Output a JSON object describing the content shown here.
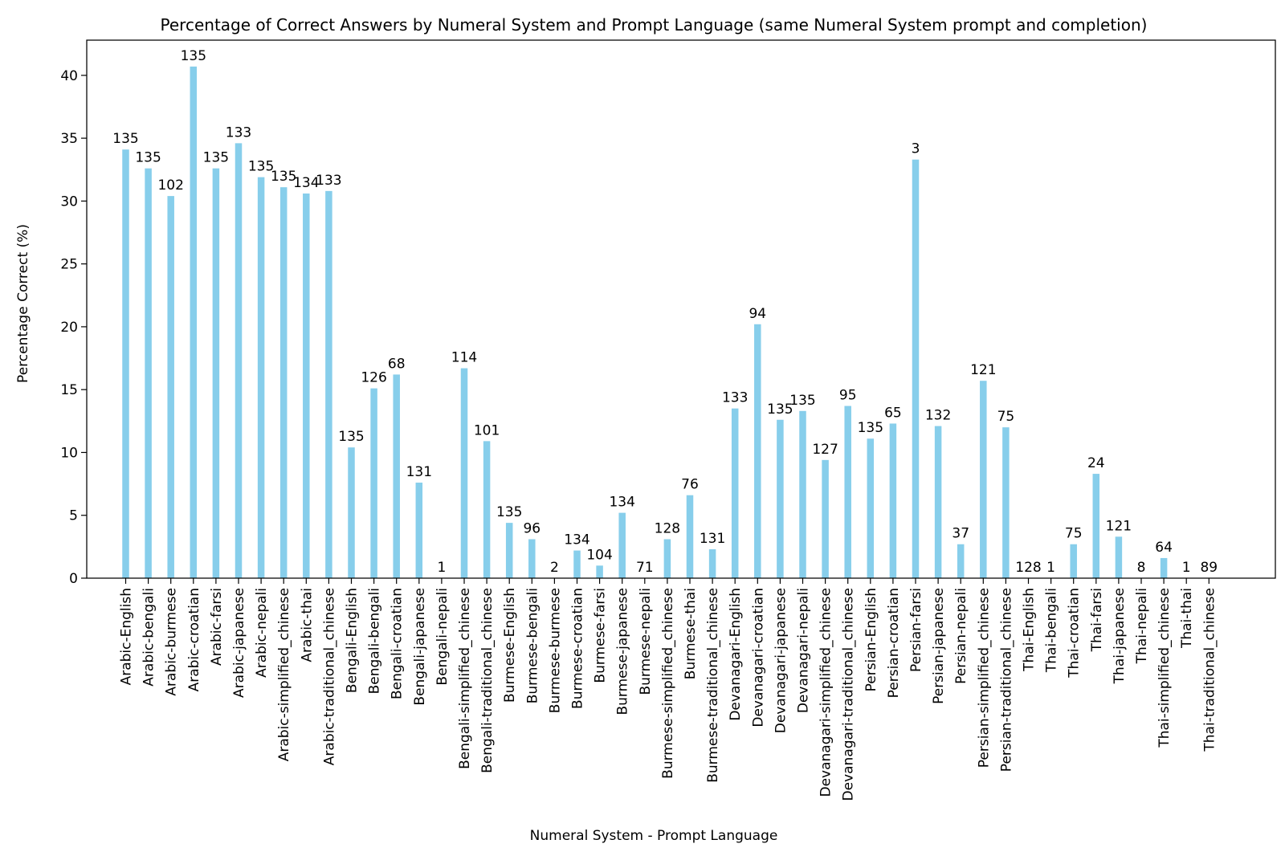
{
  "chart_data": {
    "type": "bar",
    "title": "Percentage of Correct Answers by Numeral System and Prompt Language (same Numeral System prompt and completion)",
    "xlabel": "Numeral System - Prompt Language",
    "ylabel": "Percentage Correct (%)",
    "ylim": [
      0,
      42.8
    ],
    "yticks": [
      0,
      5,
      10,
      15,
      20,
      25,
      30,
      35,
      40
    ],
    "grid": false,
    "bar_color": "#87ceeb",
    "categories": [
      "Arabic-English",
      "Arabic-bengali",
      "Arabic-burmese",
      "Arabic-croatian",
      "Arabic-farsi",
      "Arabic-japanese",
      "Arabic-nepali",
      "Arabic-simplified_chinese",
      "Arabic-thai",
      "Arabic-traditional_chinese",
      "Bengali-English",
      "Bengali-bengali",
      "Bengali-croatian",
      "Bengali-japanese",
      "Bengali-nepali",
      "Bengali-simplified_chinese",
      "Bengali-traditional_chinese",
      "Burmese-English",
      "Burmese-bengali",
      "Burmese-burmese",
      "Burmese-croatian",
      "Burmese-farsi",
      "Burmese-japanese",
      "Burmese-nepali",
      "Burmese-simplified_chinese",
      "Burmese-thai",
      "Burmese-traditional_chinese",
      "Devanagari-English",
      "Devanagari-croatian",
      "Devanagari-japanese",
      "Devanagari-nepali",
      "Devanagari-simplified_chinese",
      "Devanagari-traditional_chinese",
      "Persian-English",
      "Persian-croatian",
      "Persian-farsi",
      "Persian-japanese",
      "Persian-nepali",
      "Persian-simplified_chinese",
      "Persian-traditional_chinese",
      "Thai-English",
      "Thai-bengali",
      "Thai-croatian",
      "Thai-farsi",
      "Thai-japanese",
      "Thai-nepali",
      "Thai-simplified_chinese",
      "Thai-thai",
      "Thai-traditional_chinese"
    ],
    "values": [
      34.1,
      32.6,
      30.4,
      40.7,
      32.6,
      34.6,
      31.9,
      31.1,
      30.6,
      30.8,
      10.4,
      15.1,
      16.2,
      7.6,
      0.0,
      16.7,
      10.9,
      4.4,
      3.1,
      0.0,
      2.2,
      1.0,
      5.2,
      0.0,
      3.1,
      6.6,
      2.3,
      13.5,
      20.2,
      12.6,
      13.3,
      9.4,
      13.7,
      11.1,
      12.3,
      33.3,
      12.1,
      2.7,
      15.7,
      12.0,
      0.0,
      0.0,
      2.7,
      8.3,
      3.3,
      0.0,
      1.6,
      0.0,
      0.0
    ],
    "data_labels": [
      "135",
      "135",
      "102",
      "135",
      "135",
      "133",
      "135",
      "135",
      "134",
      "133",
      "135",
      "126",
      "68",
      "131",
      "1",
      "114",
      "101",
      "135",
      "96",
      "2",
      "134",
      "104",
      "134",
      "71",
      "128",
      "76",
      "131",
      "133",
      "94",
      "135",
      "135",
      "127",
      "95",
      "135",
      "65",
      "3",
      "132",
      "37",
      "121",
      "75",
      "128",
      "1",
      "75",
      "24",
      "121",
      "8",
      "64",
      "1",
      "89"
    ]
  }
}
